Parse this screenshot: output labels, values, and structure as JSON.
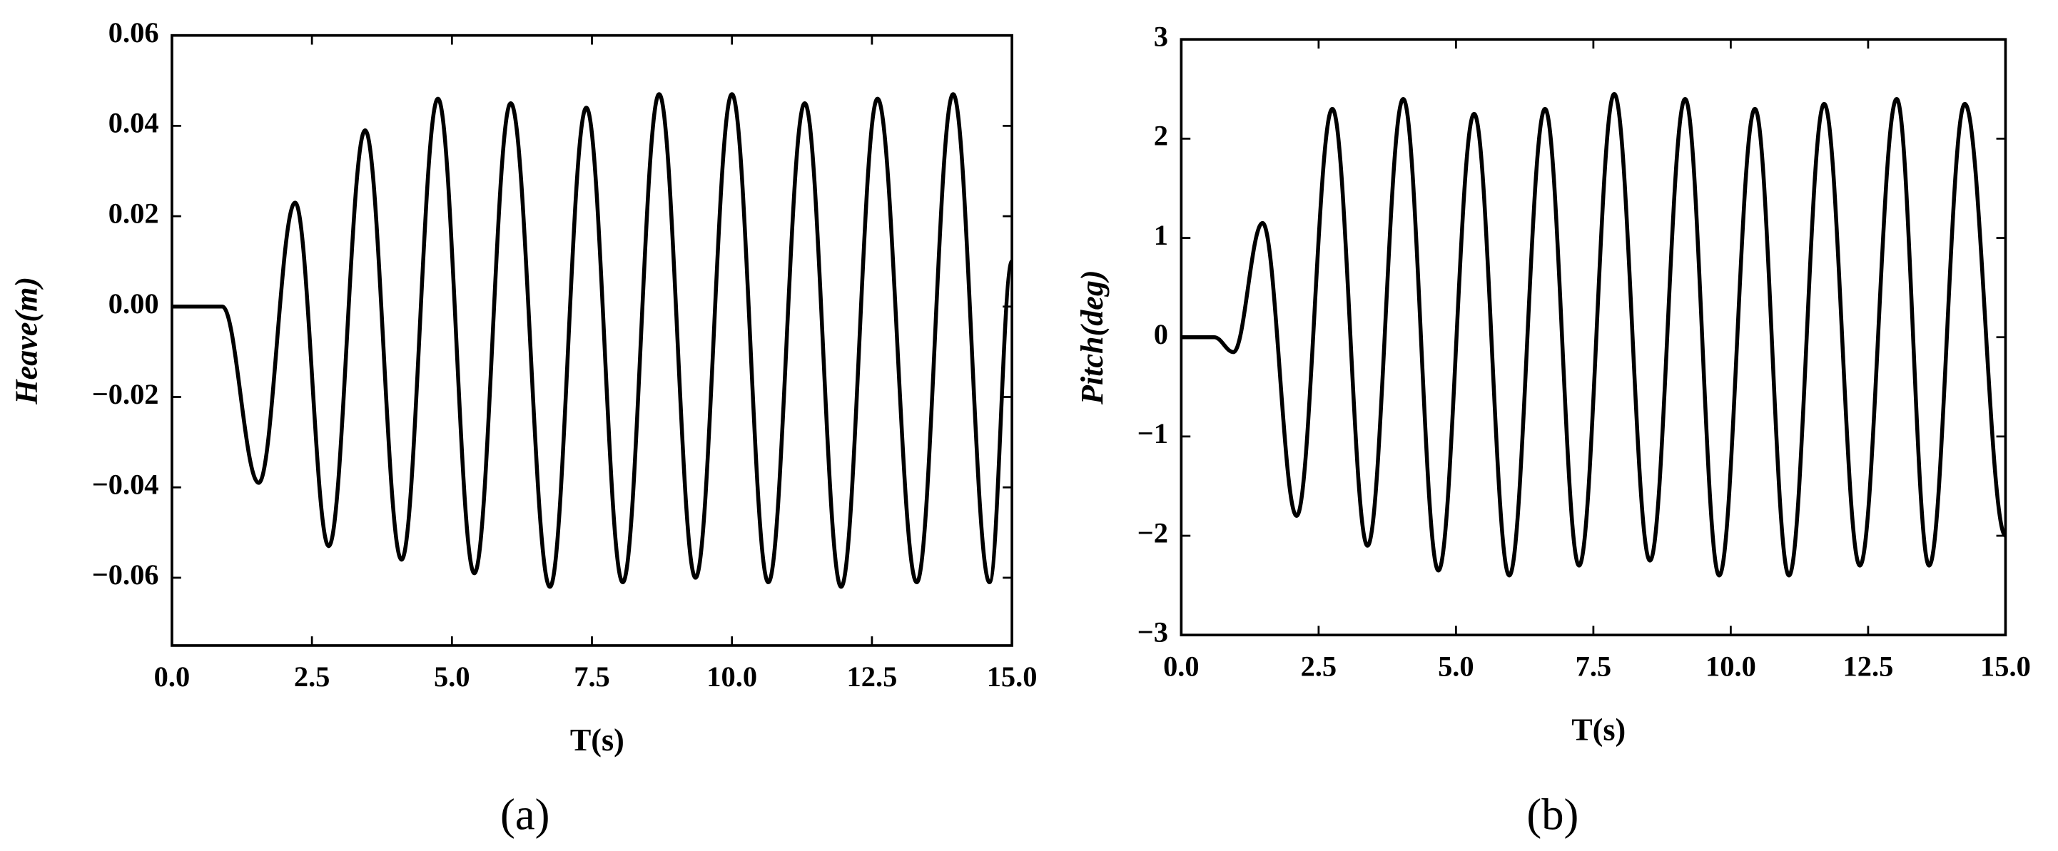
{
  "chart_data": [
    {
      "type": "line",
      "color": "#000000",
      "caption": "(a)",
      "x_label": "T(s)",
      "y_label": "Heave(m)",
      "x": [
        0,
        0.9,
        1.55,
        2.2,
        2.8,
        3.45,
        4.1,
        4.75,
        5.4,
        6.05,
        6.75,
        7.4,
        8.05,
        8.7,
        9.35,
        10.0,
        10.65,
        11.3,
        11.95,
        12.6,
        13.3,
        13.95,
        14.6,
        15.0
      ],
      "values": [
        0,
        0,
        -0.039,
        0.023,
        -0.053,
        0.039,
        -0.056,
        0.046,
        -0.059,
        0.045,
        -0.062,
        0.044,
        -0.061,
        0.047,
        -0.06,
        0.047,
        -0.061,
        0.045,
        -0.062,
        0.046,
        -0.061,
        0.047,
        -0.061,
        0.01
      ],
      "xlim": [
        0,
        15
      ],
      "ylim": [
        -0.075,
        0.06
      ],
      "xticks": [
        {
          "value": 0,
          "label": "0.0"
        },
        2.5,
        {
          "value": 5,
          "label": "5.0"
        },
        7.5,
        {
          "value": 10,
          "label": "10.0"
        },
        12.5,
        {
          "value": 15,
          "label": "15.0"
        }
      ],
      "yticks": [
        {
          "value": -0.06,
          "label": "−0.06"
        },
        {
          "value": -0.04,
          "label": "−0.04"
        },
        {
          "value": -0.02,
          "label": "−0.02"
        },
        {
          "value": 0,
          "label": "0.00"
        },
        0.02,
        0.04,
        0.06
      ]
    },
    {
      "type": "line",
      "color": "#000000",
      "caption": "(b)",
      "x_label": "T(s)",
      "y_label": "Pitch(deg)",
      "x": [
        0,
        0.6,
        0.95,
        1.48,
        2.1,
        2.75,
        3.39,
        4.04,
        4.68,
        5.33,
        5.97,
        6.62,
        7.24,
        7.88,
        8.53,
        9.17,
        9.79,
        10.44,
        11.06,
        11.7,
        12.35,
        13.02,
        13.61,
        14.26,
        15.0
      ],
      "values": [
        0,
        0,
        -0.15,
        1.15,
        -1.8,
        2.3,
        -2.1,
        2.4,
        -2.35,
        2.25,
        -2.4,
        2.3,
        -2.3,
        2.45,
        -2.25,
        2.4,
        -2.4,
        2.3,
        -2.4,
        2.35,
        -2.3,
        2.4,
        -2.3,
        2.35,
        -2.0
      ],
      "xlim": [
        0,
        15
      ],
      "ylim": [
        -3,
        3
      ],
      "xticks": [
        {
          "value": 0,
          "label": "0.0"
        },
        2.5,
        {
          "value": 5,
          "label": "5.0"
        },
        7.5,
        {
          "value": 10,
          "label": "10.0"
        },
        12.5,
        {
          "value": 15,
          "label": "15.0"
        }
      ],
      "yticks": [
        {
          "value": -3,
          "label": "−3"
        },
        {
          "value": -2,
          "label": "−2"
        },
        {
          "value": -1,
          "label": "−1"
        },
        0,
        1,
        2,
        3
      ]
    }
  ]
}
